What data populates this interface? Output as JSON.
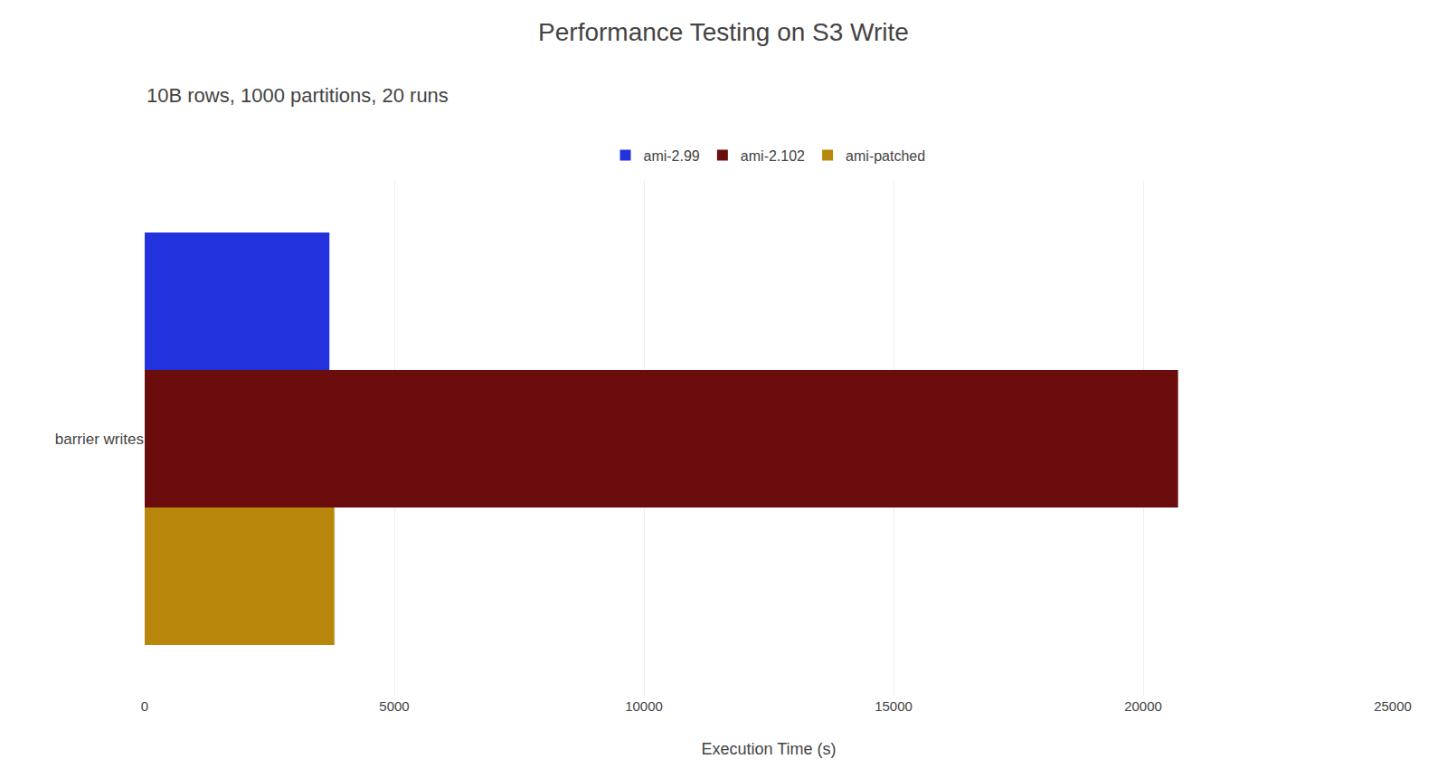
{
  "chart_data": {
    "type": "bar",
    "orientation": "horizontal",
    "title": "Performance Testing on S3 Write",
    "subtitle": "10B rows, 1000 partitions, 20 runs",
    "xlabel": "Execution Time (s)",
    "categories": [
      "barrier writes"
    ],
    "series": [
      {
        "name": "ami-2.99",
        "color": "#2233dd",
        "values": [
          3700
        ]
      },
      {
        "name": "ami-2.102",
        "color": "#6b0d0d",
        "values": [
          20700
        ]
      },
      {
        "name": "ami-patched",
        "color": "#b8860b",
        "values": [
          3800
        ]
      }
    ],
    "xlim": [
      0,
      25000
    ],
    "xticks": [
      0,
      5000,
      10000,
      15000,
      20000,
      25000
    ],
    "grid": true,
    "legend": "top"
  }
}
